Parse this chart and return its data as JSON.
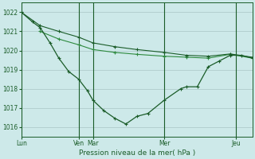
{
  "bg_color": "#cde9e9",
  "grid_color": "#b0cccc",
  "line_color_dark": "#1a5c28",
  "line_color_light": "#2d8a3e",
  "xlabel": "Pression niveau de la mer( hPa )",
  "xtick_labels": [
    "Lun",
    "Ven",
    "Mar",
    "Mer",
    "Jeu"
  ],
  "xtick_positions": [
    0,
    52,
    65,
    130,
    195
  ],
  "xlim": [
    0,
    210
  ],
  "ylim": [
    1015.5,
    1022.5
  ],
  "yticks": [
    1016,
    1017,
    1018,
    1019,
    1020,
    1021,
    1022
  ],
  "vline_positions": [
    0,
    52,
    65,
    130,
    195
  ],
  "series1_x": [
    0,
    17,
    34,
    52,
    65,
    85,
    105,
    130,
    150,
    170,
    190,
    210
  ],
  "series1_y": [
    1022.0,
    1021.3,
    1021.0,
    1020.7,
    1020.4,
    1020.2,
    1020.05,
    1019.9,
    1019.75,
    1019.7,
    1019.82,
    1019.65
  ],
  "series2_x": [
    0,
    10,
    17,
    26,
    34,
    43,
    52,
    60,
    65,
    75,
    85,
    95,
    105,
    115,
    130,
    145,
    150,
    160,
    170,
    180,
    190,
    200,
    210
  ],
  "series2_y": [
    1022.0,
    1021.5,
    1021.2,
    1020.4,
    1019.6,
    1018.9,
    1018.5,
    1017.9,
    1017.4,
    1016.85,
    1016.45,
    1016.15,
    1016.55,
    1016.7,
    1017.4,
    1018.0,
    1018.1,
    1018.1,
    1019.15,
    1019.45,
    1019.75,
    1019.75,
    1019.6
  ],
  "series3_x": [
    17,
    34,
    52,
    65,
    85,
    105,
    130,
    150,
    170,
    190,
    210
  ],
  "series3_y": [
    1021.0,
    1020.6,
    1020.3,
    1020.05,
    1019.9,
    1019.8,
    1019.7,
    1019.65,
    1019.6,
    1019.8,
    1019.6
  ]
}
